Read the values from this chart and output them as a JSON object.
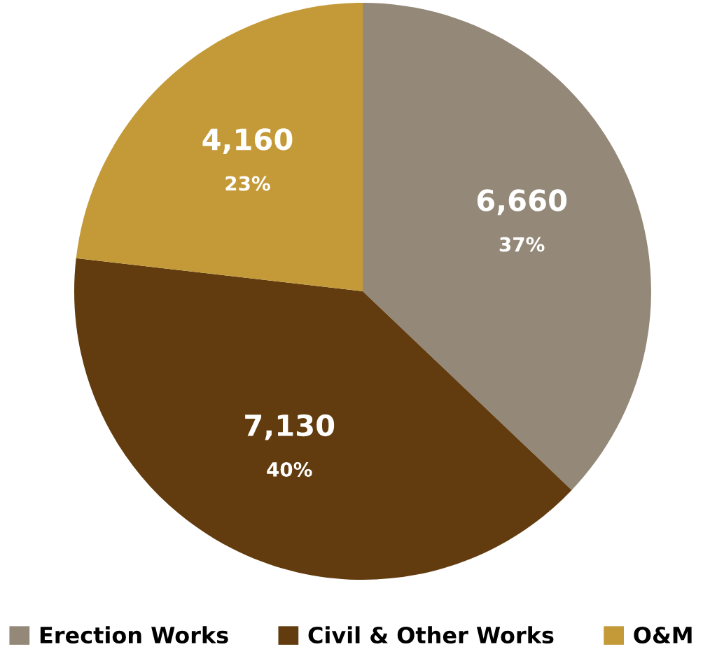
{
  "chart_data": {
    "type": "pie",
    "categories": [
      "Erection Works",
      "Civil & Other Works",
      "O&M"
    ],
    "values": [
      6660,
      7130,
      4160
    ],
    "colors": [
      "#948878",
      "#623c0e",
      "#c49a38"
    ],
    "value_labels": [
      "6,660\n37%",
      "7,130\n40%",
      "4,160\n23%"
    ],
    "legend": "bottom"
  }
}
